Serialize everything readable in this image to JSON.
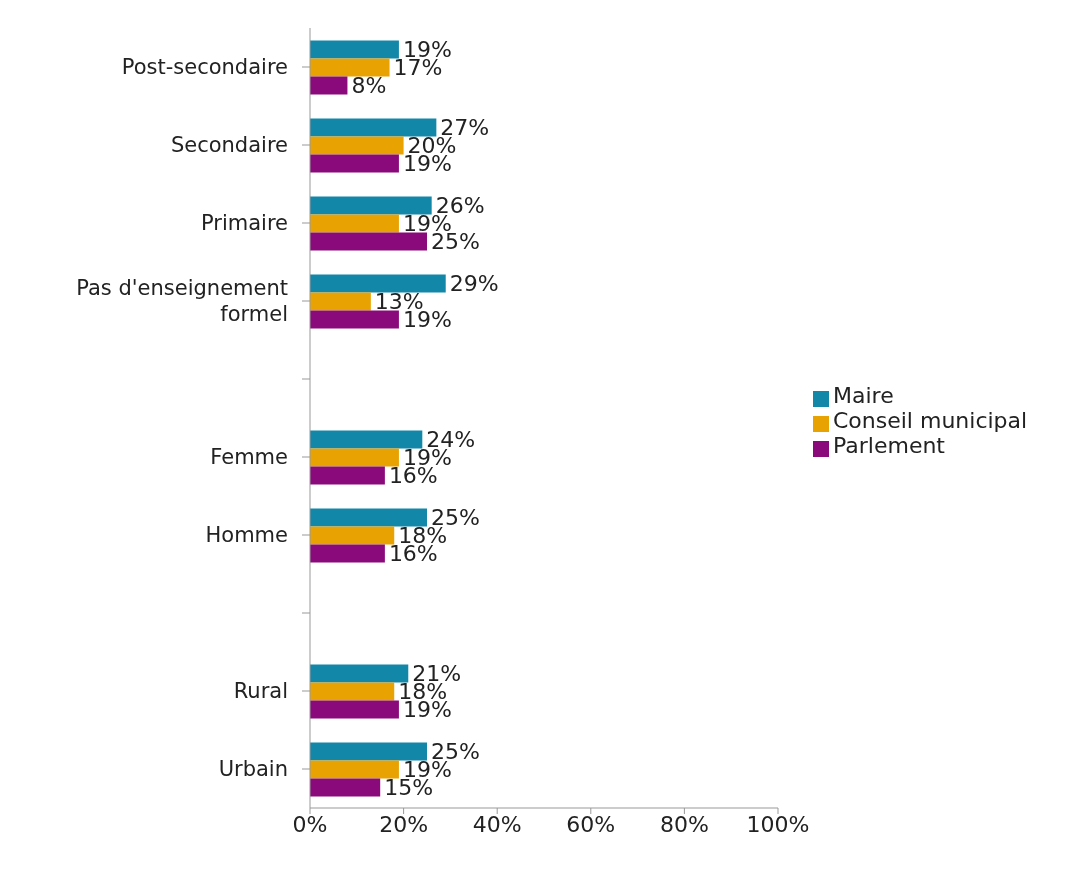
{
  "chart_data": {
    "type": "bar",
    "orientation": "horizontal",
    "categories": [
      "Post-secondaire",
      "Secondaire",
      "Primaire",
      "Pas d'enseignement formel",
      null,
      "Femme",
      "Homme",
      null,
      "Rural",
      "Urbain"
    ],
    "series": [
      {
        "name": "Maire",
        "color": "#1287a8",
        "values": [
          19,
          27,
          26,
          29,
          null,
          24,
          25,
          null,
          21,
          25
        ],
        "value_labels": [
          "19%",
          "27%",
          "26%",
          "29%",
          null,
          "24%",
          "25%",
          null,
          "21%",
          "25%"
        ]
      },
      {
        "name": "Conseil municipal",
        "color": "#e8a202",
        "values": [
          17,
          20,
          19,
          13,
          null,
          19,
          18,
          null,
          18,
          19
        ],
        "value_labels": [
          "17%",
          "20%",
          "19%",
          "13%",
          null,
          "19%",
          "18%",
          null,
          "18%",
          "19%"
        ]
      },
      {
        "name": "Parlement",
        "color": "#8b0a7b",
        "values": [
          8,
          19,
          25,
          19,
          null,
          16,
          16,
          null,
          19,
          15
        ],
        "value_labels": [
          "8%",
          "19%",
          "25%",
          "19%",
          null,
          "16%",
          "16%",
          null,
          "19%",
          "15%"
        ]
      }
    ],
    "xlim": [
      0,
      100
    ],
    "xticks": [
      {
        "value": 0,
        "label": "0%"
      },
      {
        "value": 20,
        "label": "20%"
      },
      {
        "value": 40,
        "label": "40%"
      },
      {
        "value": 60,
        "label": "60%"
      },
      {
        "value": 80,
        "label": "80%"
      },
      {
        "value": 100,
        "label": "100%"
      }
    ],
    "grid": false,
    "legend": "right"
  }
}
